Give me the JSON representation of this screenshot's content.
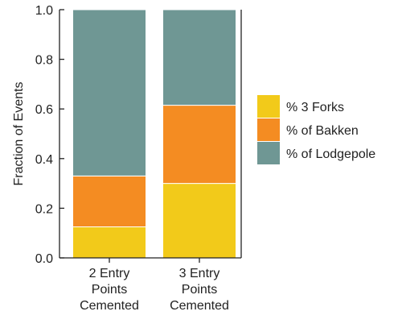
{
  "chart_data": {
    "type": "bar",
    "stacked": true,
    "categories": [
      [
        "2 Entry",
        "Points",
        "Cemented"
      ],
      [
        "3 Entry",
        "Points",
        "Cemented"
      ]
    ],
    "series": [
      {
        "name": "% 3 Forks",
        "color": "#F2CA1A",
        "values": [
          0.125,
          0.3
        ]
      },
      {
        "name": "% of Bakken",
        "color": "#F48C22",
        "values": [
          0.205,
          0.315
        ]
      },
      {
        "name": "% of Lodgepole",
        "color": "#6F9794",
        "values": [
          0.67,
          0.385
        ]
      }
    ],
    "title": "",
    "xlabel": "",
    "ylabel": "Fraction of Events",
    "ylim": [
      0,
      1.0
    ],
    "yticks": [
      "0.0",
      "0.2",
      "0.4",
      "0.6",
      "0.8",
      "1.0"
    ],
    "grid": false,
    "legend": "right"
  }
}
